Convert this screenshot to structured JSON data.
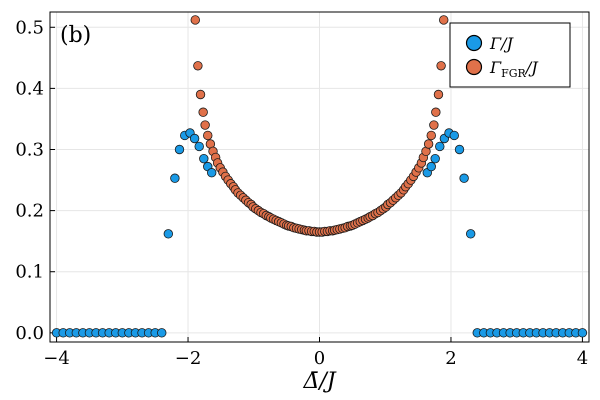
{
  "chart_data": {
    "type": "scatter",
    "panel_label": "(b)",
    "xlabel": "Δ̄/J",
    "xlim": [
      -4.1,
      4.1
    ],
    "ylim": [
      -0.015,
      0.525
    ],
    "x_ticks": [
      -4,
      -2,
      0,
      2,
      4
    ],
    "x_tick_labels": [
      "−4",
      "−2",
      "0",
      "2",
      "4"
    ],
    "y_ticks": [
      0.0,
      0.1,
      0.2,
      0.3,
      0.4,
      0.5
    ],
    "y_tick_labels": [
      "0.0",
      "0.1",
      "0.2",
      "0.3",
      "0.4",
      "0.5"
    ],
    "grid": true,
    "legend_position": "top-right",
    "series": [
      {
        "name": "Γ/J",
        "color": "#1a9ae6",
        "points": [
          [
            -4.0,
            0.0
          ],
          [
            -3.9,
            0.0
          ],
          [
            -3.8,
            0.0
          ],
          [
            -3.7,
            0.0
          ],
          [
            -3.6,
            0.0
          ],
          [
            -3.5,
            0.0
          ],
          [
            -3.4,
            0.0
          ],
          [
            -3.3,
            0.0
          ],
          [
            -3.2,
            0.0
          ],
          [
            -3.1,
            0.0
          ],
          [
            -3.0,
            0.0
          ],
          [
            -2.9,
            0.0
          ],
          [
            -2.8,
            0.0
          ],
          [
            -2.7,
            0.0
          ],
          [
            -2.6,
            0.0
          ],
          [
            -2.5,
            0.0
          ],
          [
            -2.4,
            0.0
          ],
          [
            -2.3,
            0.162
          ],
          [
            -2.2,
            0.253
          ],
          [
            -2.13,
            0.3
          ],
          [
            -2.05,
            0.323
          ],
          [
            -1.97,
            0.327
          ],
          [
            -1.9,
            0.318
          ],
          [
            -1.83,
            0.305
          ],
          [
            -1.76,
            0.285
          ],
          [
            -1.7,
            0.272
          ],
          [
            -1.64,
            0.262
          ],
          [
            1.64,
            0.262
          ],
          [
            1.7,
            0.272
          ],
          [
            1.76,
            0.285
          ],
          [
            1.83,
            0.305
          ],
          [
            1.9,
            0.318
          ],
          [
            1.97,
            0.327
          ],
          [
            2.05,
            0.323
          ],
          [
            2.13,
            0.3
          ],
          [
            2.2,
            0.253
          ],
          [
            2.3,
            0.162
          ],
          [
            2.4,
            0.0
          ],
          [
            2.5,
            0.0
          ],
          [
            2.6,
            0.0
          ],
          [
            2.7,
            0.0
          ],
          [
            2.8,
            0.0
          ],
          [
            2.9,
            0.0
          ],
          [
            3.0,
            0.0
          ],
          [
            3.1,
            0.0
          ],
          [
            3.2,
            0.0
          ],
          [
            3.3,
            0.0
          ],
          [
            3.4,
            0.0
          ],
          [
            3.5,
            0.0
          ],
          [
            3.6,
            0.0
          ],
          [
            3.7,
            0.0
          ],
          [
            3.8,
            0.0
          ],
          [
            3.9,
            0.0
          ],
          [
            4.0,
            0.0
          ]
        ]
      },
      {
        "name": "Γ_FGR/J",
        "color": "#e0714a",
        "points": [
          [
            -1.89,
            0.512
          ],
          [
            -1.85,
            0.437
          ],
          [
            -1.81,
            0.39
          ],
          [
            -1.77,
            0.361
          ],
          [
            -1.74,
            0.34
          ],
          [
            -1.7,
            0.323
          ],
          [
            -1.66,
            0.309
          ],
          [
            -1.62,
            0.297
          ],
          [
            -1.58,
            0.287
          ],
          [
            -1.55,
            0.278
          ],
          [
            -1.51,
            0.27
          ],
          [
            -1.47,
            0.263
          ],
          [
            -1.43,
            0.256
          ],
          [
            -1.39,
            0.25
          ],
          [
            -1.35,
            0.244
          ],
          [
            -1.31,
            0.239
          ],
          [
            -1.28,
            0.234
          ],
          [
            -1.24,
            0.229
          ],
          [
            -1.2,
            0.225
          ],
          [
            -1.16,
            0.221
          ],
          [
            -1.12,
            0.217
          ],
          [
            -1.08,
            0.213
          ],
          [
            -1.04,
            0.21
          ],
          [
            -1.01,
            0.206
          ],
          [
            -0.97,
            0.203
          ],
          [
            -0.93,
            0.2
          ],
          [
            -0.89,
            0.197
          ],
          [
            -0.85,
            0.195
          ],
          [
            -0.81,
            0.192
          ],
          [
            -0.77,
            0.19
          ],
          [
            -0.74,
            0.188
          ],
          [
            -0.7,
            0.186
          ],
          [
            -0.66,
            0.184
          ],
          [
            -0.62,
            0.182
          ],
          [
            -0.58,
            0.18
          ],
          [
            -0.54,
            0.178
          ],
          [
            -0.5,
            0.176
          ],
          [
            -0.47,
            0.175
          ],
          [
            -0.43,
            0.174
          ],
          [
            -0.39,
            0.172
          ],
          [
            -0.35,
            0.171
          ],
          [
            -0.31,
            0.17
          ],
          [
            -0.27,
            0.169
          ],
          [
            -0.23,
            0.168
          ],
          [
            -0.2,
            0.167
          ],
          [
            -0.16,
            0.167
          ],
          [
            -0.12,
            0.166
          ],
          [
            -0.08,
            0.166
          ],
          [
            -0.04,
            0.165
          ],
          [
            0.0,
            0.165
          ],
          [
            0.04,
            0.165
          ],
          [
            0.08,
            0.166
          ],
          [
            0.12,
            0.166
          ],
          [
            0.16,
            0.167
          ],
          [
            0.2,
            0.167
          ],
          [
            0.23,
            0.168
          ],
          [
            0.27,
            0.169
          ],
          [
            0.31,
            0.17
          ],
          [
            0.35,
            0.171
          ],
          [
            0.39,
            0.172
          ],
          [
            0.43,
            0.174
          ],
          [
            0.47,
            0.175
          ],
          [
            0.5,
            0.176
          ],
          [
            0.54,
            0.178
          ],
          [
            0.58,
            0.18
          ],
          [
            0.62,
            0.182
          ],
          [
            0.66,
            0.184
          ],
          [
            0.7,
            0.186
          ],
          [
            0.74,
            0.188
          ],
          [
            0.77,
            0.19
          ],
          [
            0.81,
            0.192
          ],
          [
            0.85,
            0.195
          ],
          [
            0.89,
            0.197
          ],
          [
            0.93,
            0.2
          ],
          [
            0.97,
            0.203
          ],
          [
            1.01,
            0.206
          ],
          [
            1.04,
            0.21
          ],
          [
            1.08,
            0.213
          ],
          [
            1.12,
            0.217
          ],
          [
            1.16,
            0.221
          ],
          [
            1.2,
            0.225
          ],
          [
            1.24,
            0.229
          ],
          [
            1.28,
            0.234
          ],
          [
            1.31,
            0.239
          ],
          [
            1.35,
            0.244
          ],
          [
            1.39,
            0.25
          ],
          [
            1.43,
            0.256
          ],
          [
            1.47,
            0.263
          ],
          [
            1.51,
            0.27
          ],
          [
            1.55,
            0.278
          ],
          [
            1.58,
            0.287
          ],
          [
            1.62,
            0.297
          ],
          [
            1.66,
            0.309
          ],
          [
            1.7,
            0.323
          ],
          [
            1.74,
            0.34
          ],
          [
            1.77,
            0.361
          ],
          [
            1.81,
            0.39
          ],
          [
            1.85,
            0.437
          ],
          [
            1.89,
            0.512
          ]
        ]
      }
    ]
  }
}
